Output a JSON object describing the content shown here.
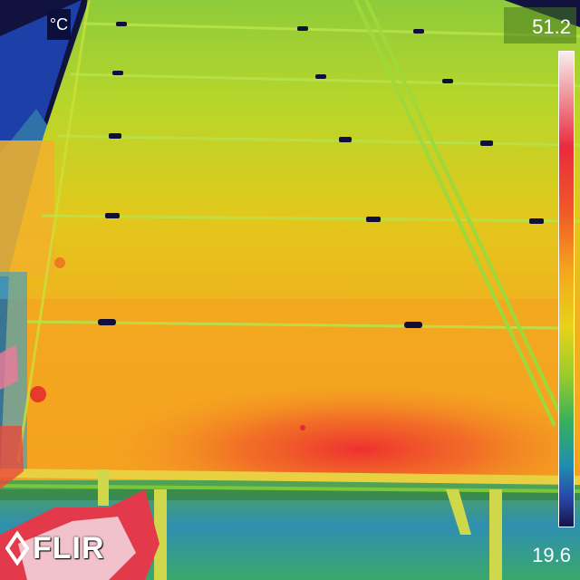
{
  "overlay": {
    "unit": "°C",
    "max_temp": "51.2",
    "min_temp": "19.6",
    "brand": "FLIR"
  },
  "scene": {
    "subject": "solar panel array",
    "palette": "rainbow"
  },
  "colors": {
    "sky": "#12123e",
    "panel_cool": "#b8d62a",
    "panel_mid": "#efc51c",
    "panel_hot": "#ee3a2a",
    "ground": "#3aa0a8",
    "scale_top": "#f6efee",
    "scale_bottom": "#161446"
  },
  "icons": {
    "brand_mark": "flir-diamond-icon"
  }
}
